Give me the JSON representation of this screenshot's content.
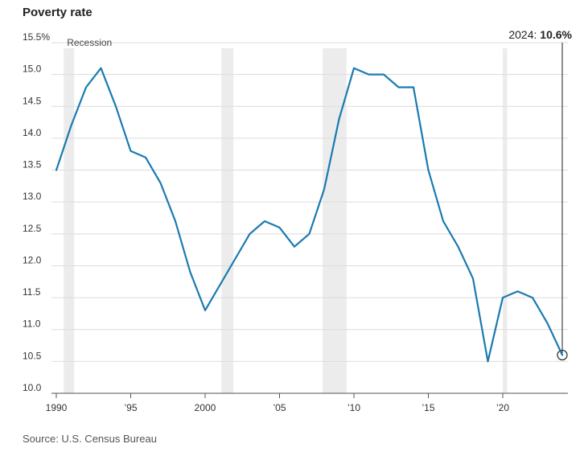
{
  "chart_data": {
    "type": "line",
    "title": "Poverty rate",
    "source": "Source: U.S. Census Bureau",
    "ylim": [
      10.0,
      15.5
    ],
    "xlim": [
      1990,
      2024
    ],
    "y_ticks": [
      {
        "value": 15.5,
        "label": "15.5%"
      },
      {
        "value": 15.0,
        "label": "15.0"
      },
      {
        "value": 14.5,
        "label": "14.5"
      },
      {
        "value": 14.0,
        "label": "14.0"
      },
      {
        "value": 13.5,
        "label": "13.5"
      },
      {
        "value": 13.0,
        "label": "13.0"
      },
      {
        "value": 12.5,
        "label": "12.5"
      },
      {
        "value": 12.0,
        "label": "12.0"
      },
      {
        "value": 11.5,
        "label": "11.5"
      },
      {
        "value": 11.0,
        "label": "11.0"
      },
      {
        "value": 10.5,
        "label": "10.5"
      },
      {
        "value": 10.0,
        "label": "10.0"
      }
    ],
    "x_ticks": [
      {
        "value": 1990,
        "label": "1990"
      },
      {
        "value": 1995,
        "label": "’95"
      },
      {
        "value": 2000,
        "label": "2000"
      },
      {
        "value": 2005,
        "label": "’05"
      },
      {
        "value": 2010,
        "label": "’10"
      },
      {
        "value": 2015,
        "label": "’15"
      },
      {
        "value": 2020,
        "label": "’20"
      }
    ],
    "grid": true,
    "recession_label": "Recession",
    "recessions": [
      [
        1990.5,
        1991.2
      ],
      [
        2001.1,
        2001.9
      ],
      [
        2007.9,
        2009.5
      ],
      [
        2020.0,
        2020.3
      ]
    ],
    "series": [
      {
        "color": "#1a7ab0",
        "x": [
          1990,
          1991,
          1992,
          1993,
          1994,
          1995,
          1996,
          1997,
          1998,
          1999,
          2000,
          2001,
          2002,
          2003,
          2004,
          2005,
          2006,
          2007,
          2008,
          2009,
          2010,
          2011,
          2012,
          2013,
          2014,
          2015,
          2016,
          2017,
          2018,
          2019,
          2020,
          2021,
          2022,
          2023,
          2024
        ],
        "values": [
          13.5,
          14.2,
          14.8,
          15.1,
          14.5,
          13.8,
          13.7,
          13.3,
          12.7,
          11.9,
          11.3,
          11.7,
          12.1,
          12.5,
          12.7,
          12.6,
          12.3,
          12.5,
          13.2,
          14.3,
          15.1,
          15.0,
          15.0,
          14.8,
          14.8,
          13.5,
          12.7,
          12.3,
          11.8,
          10.5,
          11.5,
          11.6,
          11.5,
          11.1,
          10.6
        ]
      }
    ],
    "annotation": {
      "prefix": "2024: ",
      "value": "10.6%",
      "x": 2024,
      "y": 10.6
    }
  }
}
